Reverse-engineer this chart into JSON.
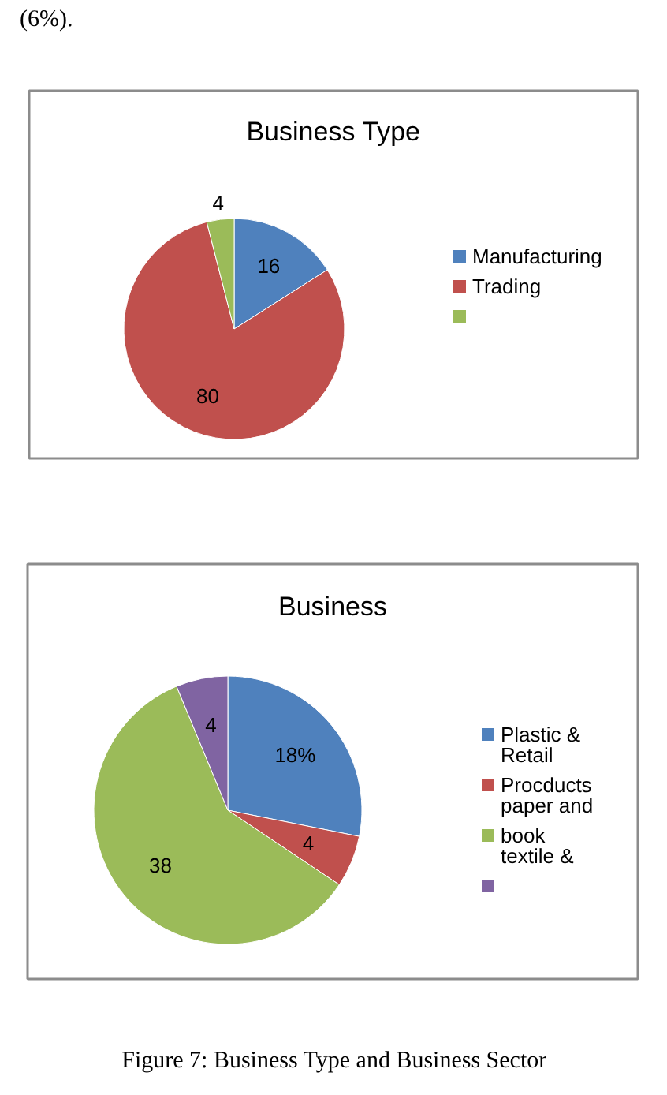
{
  "chart_data": [
    {
      "type": "pie",
      "title": "Business Type",
      "categories": [
        "Manufacturing",
        "Trading",
        null
      ],
      "values": [
        16,
        80,
        4
      ],
      "colors": [
        "#4f81bd",
        "#c0504d",
        "#9bbb59"
      ],
      "data_labels": true,
      "legend": "right",
      "annotations": [
        "(6%)."
      ]
    },
    {
      "type": "pie",
      "title": "Business",
      "categories": [
        "Plastic & Retail",
        "Procducts paper and",
        "book textile &",
        null
      ],
      "values": [
        18,
        4,
        38,
        4
      ],
      "value_labels": [
        "18%",
        "4",
        "38",
        "4"
      ],
      "colors": [
        "#4f81bd",
        "#c0504d",
        "#9bbb59",
        "#8064a2"
      ],
      "legend": "right",
      "annotations": [
        "Figure 7: Business Type and Business Sector"
      ]
    }
  ]
}
